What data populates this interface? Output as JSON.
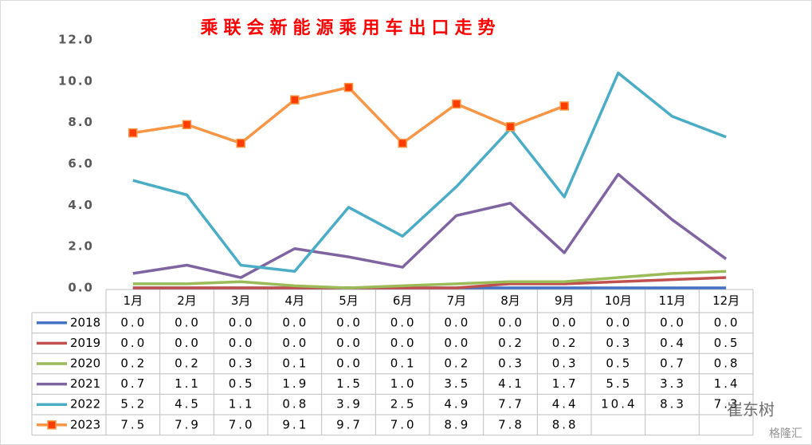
{
  "chart_data": {
    "type": "line",
    "title": "乘联会新能源乘用车出口走势",
    "categories": [
      "1月",
      "2月",
      "3月",
      "4月",
      "5月",
      "6月",
      "7月",
      "8月",
      "9月",
      "10月",
      "11月",
      "12月"
    ],
    "ylim": [
      0,
      12
    ],
    "yticks": [
      {
        "value": 0,
        "label": "0.0"
      },
      {
        "value": 2,
        "label": "2.0"
      },
      {
        "value": 4,
        "label": "4.0"
      },
      {
        "value": 6,
        "label": "6.0"
      },
      {
        "value": 8,
        "label": "8.0"
      },
      {
        "value": 10,
        "label": "10.0"
      },
      {
        "value": 12,
        "label": "12.0"
      }
    ],
    "grid": false,
    "series": [
      {
        "name": "2018",
        "color": "#4472c4",
        "values": [
          0,
          0,
          0,
          0,
          0,
          0,
          0,
          0,
          0,
          0,
          0,
          0
        ],
        "value_labels": [
          "0.0",
          "0.0",
          "0.0",
          "0.0",
          "0.0",
          "0.0",
          "0.0",
          "0.0",
          "0.0",
          "0.0",
          "0.0",
          "0.0"
        ]
      },
      {
        "name": "2019",
        "color": "#c0504d",
        "values": [
          0,
          0,
          0,
          0,
          0,
          0,
          0,
          0.2,
          0.2,
          0.3,
          0.4,
          0.5
        ],
        "value_labels": [
          "0.0",
          "0.0",
          "0.0",
          "0.0",
          "0.0",
          "0.0",
          "0.0",
          "0.2",
          "0.2",
          "0.3",
          "0.4",
          "0.5"
        ]
      },
      {
        "name": "2020",
        "color": "#9bbb59",
        "values": [
          0.2,
          0.2,
          0.3,
          0.1,
          0,
          0.1,
          0.2,
          0.3,
          0.3,
          0.5,
          0.7,
          0.8
        ],
        "value_labels": [
          "0.2",
          "0.2",
          "0.3",
          "0.1",
          "0.0",
          "0.1",
          "0.2",
          "0.3",
          "0.3",
          "0.5",
          "0.7",
          "0.8"
        ]
      },
      {
        "name": "2021",
        "color": "#8064a2",
        "values": [
          0.7,
          1.1,
          0.5,
          1.9,
          1.5,
          1,
          3.5,
          4.1,
          1.7,
          5.5,
          3.3,
          1.4
        ],
        "value_labels": [
          "0.7",
          "1.1",
          "0.5",
          "1.9",
          "1.5",
          "1.0",
          "3.5",
          "4.1",
          "1.7",
          "5.5",
          "3.3",
          "1.4"
        ]
      },
      {
        "name": "2022",
        "color": "#4bacc6",
        "values": [
          5.2,
          4.5,
          1.1,
          0.8,
          3.9,
          2.5,
          4.9,
          7.7,
          4.4,
          10.4,
          8.3,
          7.3
        ],
        "value_labels": [
          "5.2",
          "4.5",
          "1.1",
          "0.8",
          "3.9",
          "2.5",
          "4.9",
          "7.7",
          "4.4",
          "10.4",
          "8.3",
          "7.3"
        ]
      },
      {
        "name": "2023",
        "color": "#f79646",
        "marker": "square",
        "marker_color": "#ff3c00",
        "values": [
          7.5,
          7.9,
          7.0,
          9.1,
          9.7,
          7.0,
          8.9,
          7.8,
          8.8,
          null,
          null,
          null
        ],
        "value_labels": [
          "7.5",
          "7.9",
          "7.0",
          "9.1",
          "9.7",
          "7.0",
          "8.9",
          "7.8",
          "8.8",
          null,
          null,
          null
        ]
      }
    ],
    "watermark": [
      "崔东树",
      "格隆汇"
    ]
  }
}
